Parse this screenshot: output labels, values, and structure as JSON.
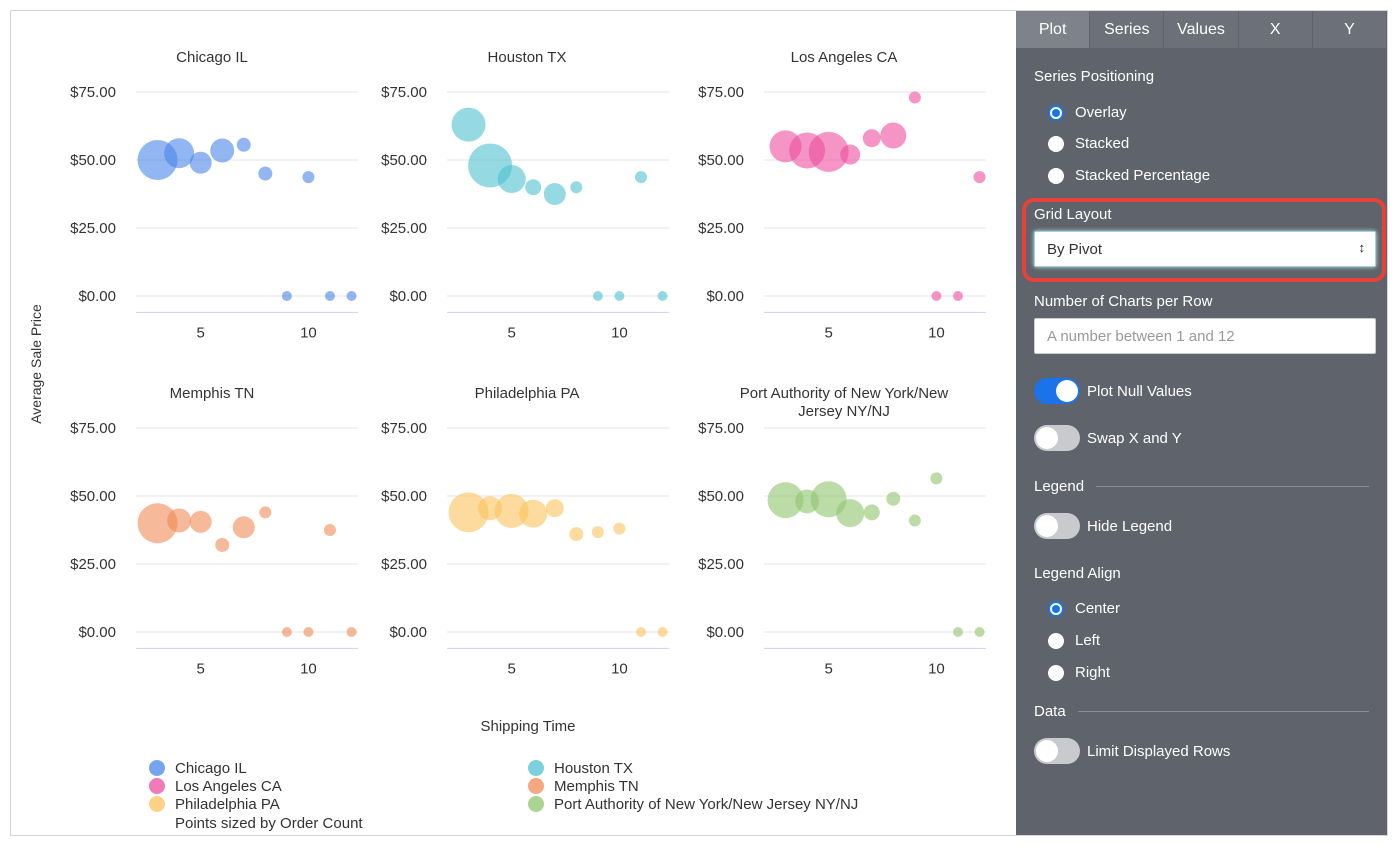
{
  "chart_data": {
    "type": "scatter",
    "bubble": true,
    "ylabel": "Average Sale Price",
    "xlabel": "Shipping Time",
    "size_note": "Points sized by Order Count",
    "xlim": [
      2,
      12.3
    ],
    "ylim": [
      -6,
      75
    ],
    "y_ticks": [
      "$0.00",
      "$25.00",
      "$50.00",
      "$75.00"
    ],
    "y_tick_values": [
      0,
      25,
      50,
      75
    ],
    "x_ticks": [
      "5",
      "10"
    ],
    "x_tick_values": [
      5,
      10
    ],
    "grid": true,
    "legend_position": "bottom",
    "series": [
      {
        "name": "Chicago IL",
        "color": "#4a86e8",
        "x": [
          3,
          4,
          5,
          6,
          7,
          8,
          10,
          9,
          11,
          12
        ],
        "y": [
          50,
          52.5,
          49,
          53.5,
          55.6,
          45,
          43.7,
          0,
          0,
          0
        ],
        "size": [
          400,
          225,
          121,
          144,
          49,
          49,
          36,
          25,
          25,
          25
        ]
      },
      {
        "name": "Houston TX",
        "color": "#4fc1d1",
        "x": [
          3,
          4,
          5,
          6,
          7,
          8,
          11,
          9,
          10,
          12
        ],
        "y": [
          63,
          48,
          43,
          40,
          37.5,
          40,
          43.7,
          0,
          0,
          0
        ],
        "size": [
          289,
          484,
          196,
          64,
          121,
          36,
          36,
          25,
          25,
          25
        ]
      },
      {
        "name": "Los Angeles CA",
        "color": "#ec4f9f",
        "x": [
          3,
          4,
          5,
          6,
          7,
          8,
          9,
          12,
          10,
          11
        ],
        "y": [
          55,
          53.5,
          53,
          52,
          58,
          59,
          73,
          43.7,
          0,
          0
        ],
        "size": [
          256,
          324,
          400,
          100,
          81,
          169,
          36,
          36,
          25,
          25
        ]
      },
      {
        "name": "Memphis TN",
        "color": "#f08a55",
        "x": [
          3,
          4,
          5,
          6,
          7,
          8,
          11,
          9,
          10,
          12
        ],
        "y": [
          40,
          41,
          40.5,
          32,
          38.5,
          44,
          37.5,
          0,
          0,
          0
        ],
        "size": [
          400,
          144,
          121,
          49,
          121,
          36,
          36,
          25,
          25,
          25
        ]
      },
      {
        "name": "Philadelphia PA",
        "color": "#fcc35d",
        "x": [
          3,
          4,
          5,
          6,
          7,
          8,
          9,
          10,
          11,
          12
        ],
        "y": [
          44,
          45.5,
          44.5,
          43.5,
          45.5,
          36,
          36.7,
          38,
          0,
          0
        ],
        "size": [
          400,
          144,
          289,
          196,
          81,
          49,
          36,
          36,
          25,
          25
        ]
      },
      {
        "name": "Port Authority of New York/New Jersey NY/NJ",
        "color": "#8fc46c",
        "x": [
          3,
          4,
          5,
          6,
          7,
          8,
          9,
          10,
          11,
          12
        ],
        "y": [
          48.5,
          48,
          48.8,
          43.7,
          44,
          49,
          41,
          56.5,
          0,
          0
        ],
        "size": [
          324,
          144,
          324,
          196,
          64,
          49,
          36,
          36,
          25,
          25
        ]
      }
    ],
    "panel_titles": [
      "Chicago IL",
      "Houston TX",
      "Los Angeles CA",
      "Memphis TN",
      "Philadelphia PA",
      "Port Authority of New York/New",
      "Jersey NY/NJ"
    ]
  },
  "panel": {
    "tabs": [
      "Plot",
      "Series",
      "Values",
      "X",
      "Y"
    ],
    "active_tab": "Plot",
    "series_positioning": "Series Positioning",
    "positioning_options": [
      "Overlay",
      "Stacked",
      "Stacked Percentage"
    ],
    "positioning_selected": "Overlay",
    "grid_layout": "Grid Layout",
    "grid_layout_value": "By Pivot",
    "charts_per_row": "Number of Charts per Row",
    "charts_per_row_placeholder": "A number between 1 and 12",
    "plot_null": "Plot Null Values",
    "plot_null_on": true,
    "swap_xy": "Swap X and Y",
    "swap_xy_on": false,
    "legend_section": "Legend",
    "hide_legend": "Hide Legend",
    "hide_legend_on": false,
    "legend_align": "Legend Align",
    "align_options": [
      "Center",
      "Left",
      "Right"
    ],
    "align_selected": "Center",
    "data_section": "Data",
    "limit_rows": "Limit Displayed Rows",
    "limit_rows_on": false,
    "accent": "#1a73e8",
    "highlight": "#e8403a"
  }
}
